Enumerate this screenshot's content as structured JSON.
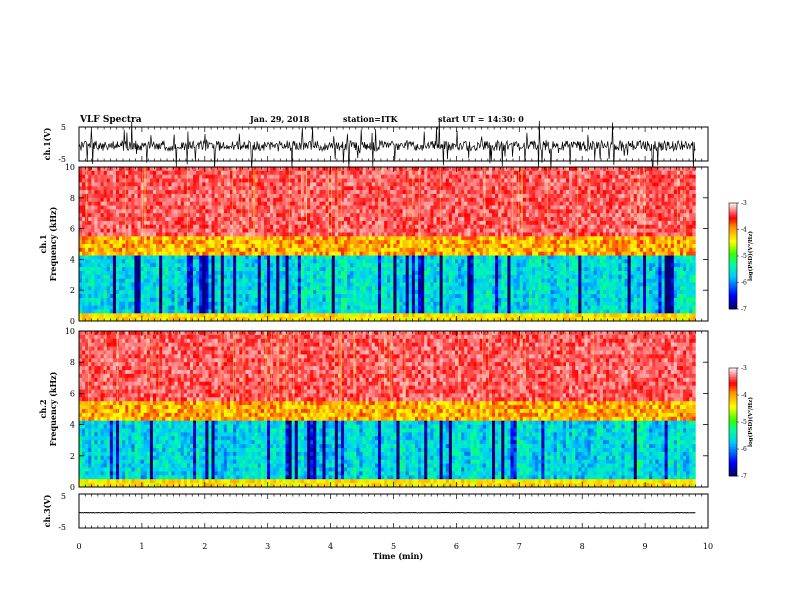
{
  "header": {
    "title": "VLF Spectra",
    "date": "Jan. 29, 2018",
    "station": "station=ITK",
    "start_ut": "start UT =  14:30: 0"
  },
  "chart_data": [
    {
      "type": "line",
      "name": "ch1-waveform",
      "ylabel": "ch.1(V)",
      "ylim": [
        -5,
        5
      ],
      "yticks": [
        "5",
        "-5"
      ],
      "xlim": [
        0,
        10
      ],
      "baseline": -0.5,
      "noise_amplitude": 1.5,
      "spike_amplitude": 5
    },
    {
      "type": "heatmap",
      "name": "ch1-spectrogram",
      "ylabel_line1": "ch.1",
      "ylabel_line2": "Frequency (kHz)",
      "ylim": [
        0,
        10
      ],
      "yticks": [
        "0",
        "2",
        "4",
        "6",
        "8",
        "10"
      ],
      "xlim": [
        0,
        9.8
      ],
      "colorbar": {
        "label": "log(PSD)(V²/Hz)",
        "range": [
          -7,
          -3
        ],
        "ticks": [
          "-3",
          "-4",
          "-5",
          "-6",
          "-7"
        ]
      }
    },
    {
      "type": "heatmap",
      "name": "ch2-spectrogram",
      "ylabel_line1": "ch.2",
      "ylabel_line2": "Frequency (kHz)",
      "ylim": [
        0,
        10
      ],
      "yticks": [
        "0",
        "2",
        "4",
        "6",
        "8",
        "10"
      ],
      "xlim": [
        0,
        9.8
      ],
      "colorbar": {
        "label": "log(PSD)(V²/Hz)",
        "range": [
          -7,
          -3
        ],
        "ticks": [
          "-3",
          "-4",
          "-5",
          "-6",
          "-7"
        ]
      }
    },
    {
      "type": "line",
      "name": "ch3-waveform",
      "ylabel": "ch.3(V)",
      "ylim": [
        -5,
        5
      ],
      "yticks": [
        "5",
        "-5"
      ],
      "xlim": [
        0,
        10
      ],
      "baseline": -0.5
    }
  ],
  "xaxis": {
    "label": "Time (min)",
    "ticks": [
      "0",
      "1",
      "2",
      "3",
      "4",
      "5",
      "6",
      "7",
      "8",
      "9",
      "10"
    ]
  },
  "colors": {
    "low": "#00007f",
    "mid_low": "#00ffff",
    "mid": "#00ff00",
    "mid_high": "#ffff00",
    "high": "#ff0000",
    "top": "#ffffff"
  }
}
